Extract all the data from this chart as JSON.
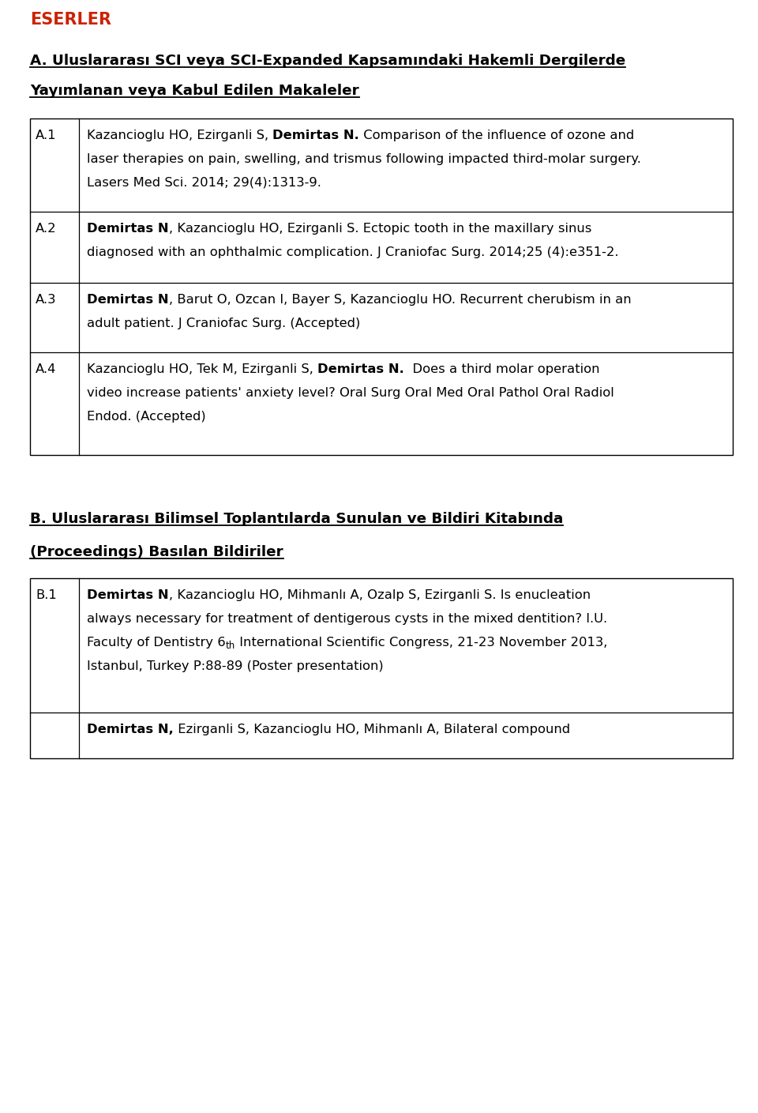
{
  "bg_color": "#ffffff",
  "header_color": "#cc2200",
  "header_text": "ESERLER",
  "section_a_title": "A. Uluslararası SCI veya SCI-Expanded Kapsamındaki Hakemli Dergilerde",
  "section_a_subtitle": "Yayımlanan veya Kabul Edilen Makaleler",
  "section_b_title": "B. Uluslararası Bilimsel Toplantılarda Sunulan ve Bildiri Kitabında",
  "section_b_subtitle": "(Proceedings) Basılan Bildiriler",
  "table_a": [
    {
      "id": "A.1",
      "lines": [
        [
          {
            "text": "Kazancioglu HO, Ezirganli S, ",
            "bold": false
          },
          {
            "text": "Demirtas N.",
            "bold": true
          },
          {
            "text": " Comparison of the influence of ozone and",
            "bold": false
          }
        ],
        [
          {
            "text": "laser therapies on pain, swelling, and trismus following impacted third-molar surgery.",
            "bold": false
          }
        ],
        [
          {
            "text": "Lasers Med Sci. 2014; 29(4):1313-9.",
            "bold": false
          }
        ]
      ]
    },
    {
      "id": "A.2",
      "lines": [
        [
          {
            "text": "Demirtas N",
            "bold": true
          },
          {
            "text": ", Kazancioglu HO, Ezirganli S. Ectopic tooth in the maxillary sinus",
            "bold": false
          }
        ],
        [
          {
            "text": "diagnosed with an ophthalmic complication. J Craniofac Surg. 2014;25 (4):e351-2.",
            "bold": false
          }
        ]
      ]
    },
    {
      "id": "A.3",
      "lines": [
        [
          {
            "text": "Demirtas N",
            "bold": true
          },
          {
            "text": ", Barut O, Ozcan I, Bayer S, Kazancioglu HO. Recurrent cherubism in an",
            "bold": false
          }
        ],
        [
          {
            "text": "adult patient. J Craniofac Surg. (Accepted)",
            "bold": false
          }
        ]
      ]
    },
    {
      "id": "A.4",
      "lines": [
        [
          {
            "text": "Kazancioglu HO, Tek M, Ezirganli S, ",
            "bold": false
          },
          {
            "text": "Demirtas N.",
            "bold": true
          },
          {
            "text": "  Does a third molar operation",
            "bold": false
          }
        ],
        [
          {
            "text": "video increase patients' anxiety level? Oral Surg Oral Med Oral Pathol Oral Radiol",
            "bold": false
          }
        ],
        [
          {
            "text": "Endod. (Accepted)",
            "bold": false
          }
        ]
      ]
    }
  ],
  "table_b": [
    {
      "id": "B.1",
      "lines": [
        [
          {
            "text": "Demirtas N",
            "bold": true
          },
          {
            "text": ", Kazancioglu HO, Mihmanlı A, Ozalp S, Ezirganli S. Is enucleation",
            "bold": false
          }
        ],
        [
          {
            "text": "always necessary for treatment of dentigerous cysts in the mixed dentition? I.U.",
            "bold": false
          }
        ],
        [
          {
            "text": "Faculty of Dentistry 6",
            "bold": false
          },
          {
            "text": "th",
            "bold": false,
            "superscript": true
          },
          {
            "text": " International Scientific Congress, 21-23 November 2013,",
            "bold": false
          }
        ],
        [
          {
            "text": "Istanbul, Turkey P:88-89 (Poster presentation)",
            "bold": false
          }
        ]
      ]
    },
    {
      "id": "",
      "lines": [
        [
          {
            "text": "Demirtas N,",
            "bold": true
          },
          {
            "text": " Ezirganli S, Kazancioglu HO, Mihmanlı A, Bilateral compound",
            "bold": false
          }
        ]
      ]
    }
  ]
}
